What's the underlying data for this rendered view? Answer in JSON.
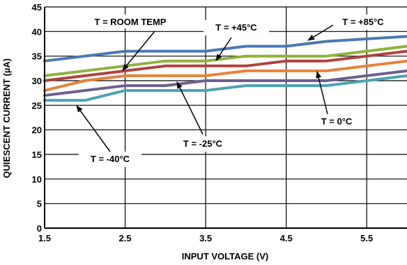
{
  "chart_data": {
    "type": "line",
    "xlabel": "INPUT VOLTAGE (V)",
    "ylabel": "QUIESCENT CURRENT (µA)",
    "xlim": [
      1.5,
      6.0
    ],
    "ylim": [
      0,
      45
    ],
    "xticks": [
      1.5,
      2.5,
      3.5,
      4.5,
      5.5
    ],
    "yticks": [
      0,
      5,
      10,
      15,
      20,
      25,
      30,
      35,
      40,
      45
    ],
    "xtick_labels": [
      "1.5",
      "2.5",
      "3.5",
      "4.5",
      "5.5"
    ],
    "ytick_labels": [
      "0",
      "5",
      "10",
      "15",
      "20",
      "25",
      "30",
      "35",
      "40",
      "45"
    ],
    "grid": true,
    "series": [
      {
        "name": "T = +85°C",
        "color": "#4a78b5",
        "x": [
          1.5,
          2.0,
          2.5,
          3.0,
          3.5,
          4.0,
          4.5,
          5.0,
          5.5,
          6.0
        ],
        "y": [
          34.0,
          35.0,
          36.0,
          36.0,
          36.0,
          37.0,
          37.0,
          38.0,
          38.5,
          39.0
        ]
      },
      {
        "name": "T = +45°C",
        "color": "#8db33a",
        "x": [
          1.5,
          2.0,
          2.5,
          3.0,
          3.5,
          4.0,
          4.5,
          5.0,
          5.5,
          6.0
        ],
        "y": [
          31.0,
          32.0,
          33.0,
          34.0,
          34.0,
          35.0,
          35.0,
          35.0,
          36.0,
          37.0
        ]
      },
      {
        "name": "T = ROOM TEMP",
        "color": "#b0423f",
        "x": [
          1.5,
          2.0,
          2.5,
          3.0,
          3.5,
          4.0,
          4.5,
          5.0,
          5.5,
          6.0
        ],
        "y": [
          30.0,
          31.0,
          32.0,
          33.0,
          33.0,
          33.0,
          34.0,
          34.0,
          35.0,
          36.0
        ]
      },
      {
        "name": "T = 0°C",
        "color": "#e8823a",
        "x": [
          1.5,
          2.0,
          2.5,
          3.0,
          3.5,
          4.0,
          4.5,
          5.0,
          5.5,
          6.0
        ],
        "y": [
          28.0,
          30.0,
          31.0,
          31.0,
          31.0,
          32.0,
          32.0,
          32.0,
          33.0,
          34.0
        ]
      },
      {
        "name": "T = -25°C",
        "color": "#6e5f8f",
        "x": [
          1.5,
          2.0,
          2.5,
          3.0,
          3.5,
          4.0,
          4.5,
          5.0,
          5.5,
          6.0
        ],
        "y": [
          27.0,
          28.0,
          29.0,
          29.0,
          30.0,
          30.0,
          30.0,
          30.0,
          31.0,
          32.0
        ]
      },
      {
        "name": "T = -40°C",
        "color": "#4aa3b5",
        "x": [
          1.5,
          2.0,
          2.5,
          3.0,
          3.5,
          4.0,
          4.5,
          5.0,
          5.5,
          6.0
        ],
        "y": [
          26.0,
          26.0,
          28.0,
          28.0,
          28.0,
          29.0,
          29.0,
          29.0,
          30.0,
          31.0
        ]
      }
    ],
    "annotations": [
      {
        "text": "T = ROOM TEMP",
        "series": "T = ROOM TEMP"
      },
      {
        "text": "T = +45°C",
        "series": "T = +45°C"
      },
      {
        "text": "T = +85°C",
        "series": "T = +85°C"
      },
      {
        "text": "T = 0°C",
        "series": "T = 0°C"
      },
      {
        "text": "T = -25°C",
        "series": "T = -25°C"
      },
      {
        "text": "T = -40°C",
        "series": "T = -40°C"
      }
    ]
  }
}
